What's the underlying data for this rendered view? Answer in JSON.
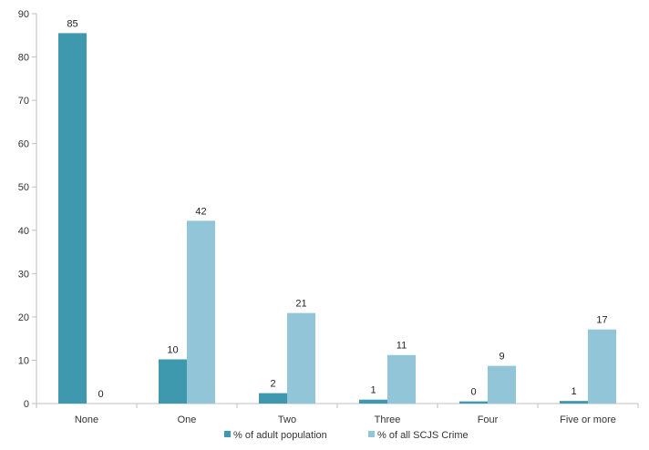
{
  "chart_data": {
    "type": "bar",
    "categories": [
      "None",
      "One",
      "Two",
      "Three",
      "Four",
      "Five or more"
    ],
    "series": [
      {
        "name": "% of adult population",
        "color": "#3E98AE",
        "values": [
          85.5,
          10.2,
          2.4,
          0.9,
          0.5,
          0.6
        ],
        "labels": [
          "85",
          "10",
          "2",
          "1",
          "0",
          "1"
        ]
      },
      {
        "name": "% of all SCJS Crime",
        "color": "#92C5D8",
        "values": [
          0,
          42.2,
          20.9,
          11.2,
          8.7,
          17.1
        ],
        "labels": [
          "0",
          "42",
          "21",
          "11",
          "9",
          "17"
        ]
      }
    ],
    "ylim": [
      0,
      90
    ],
    "yticks": [
      0,
      10,
      20,
      30,
      40,
      50,
      60,
      70,
      80,
      90
    ],
    "grid": false,
    "legend": "bottom"
  }
}
